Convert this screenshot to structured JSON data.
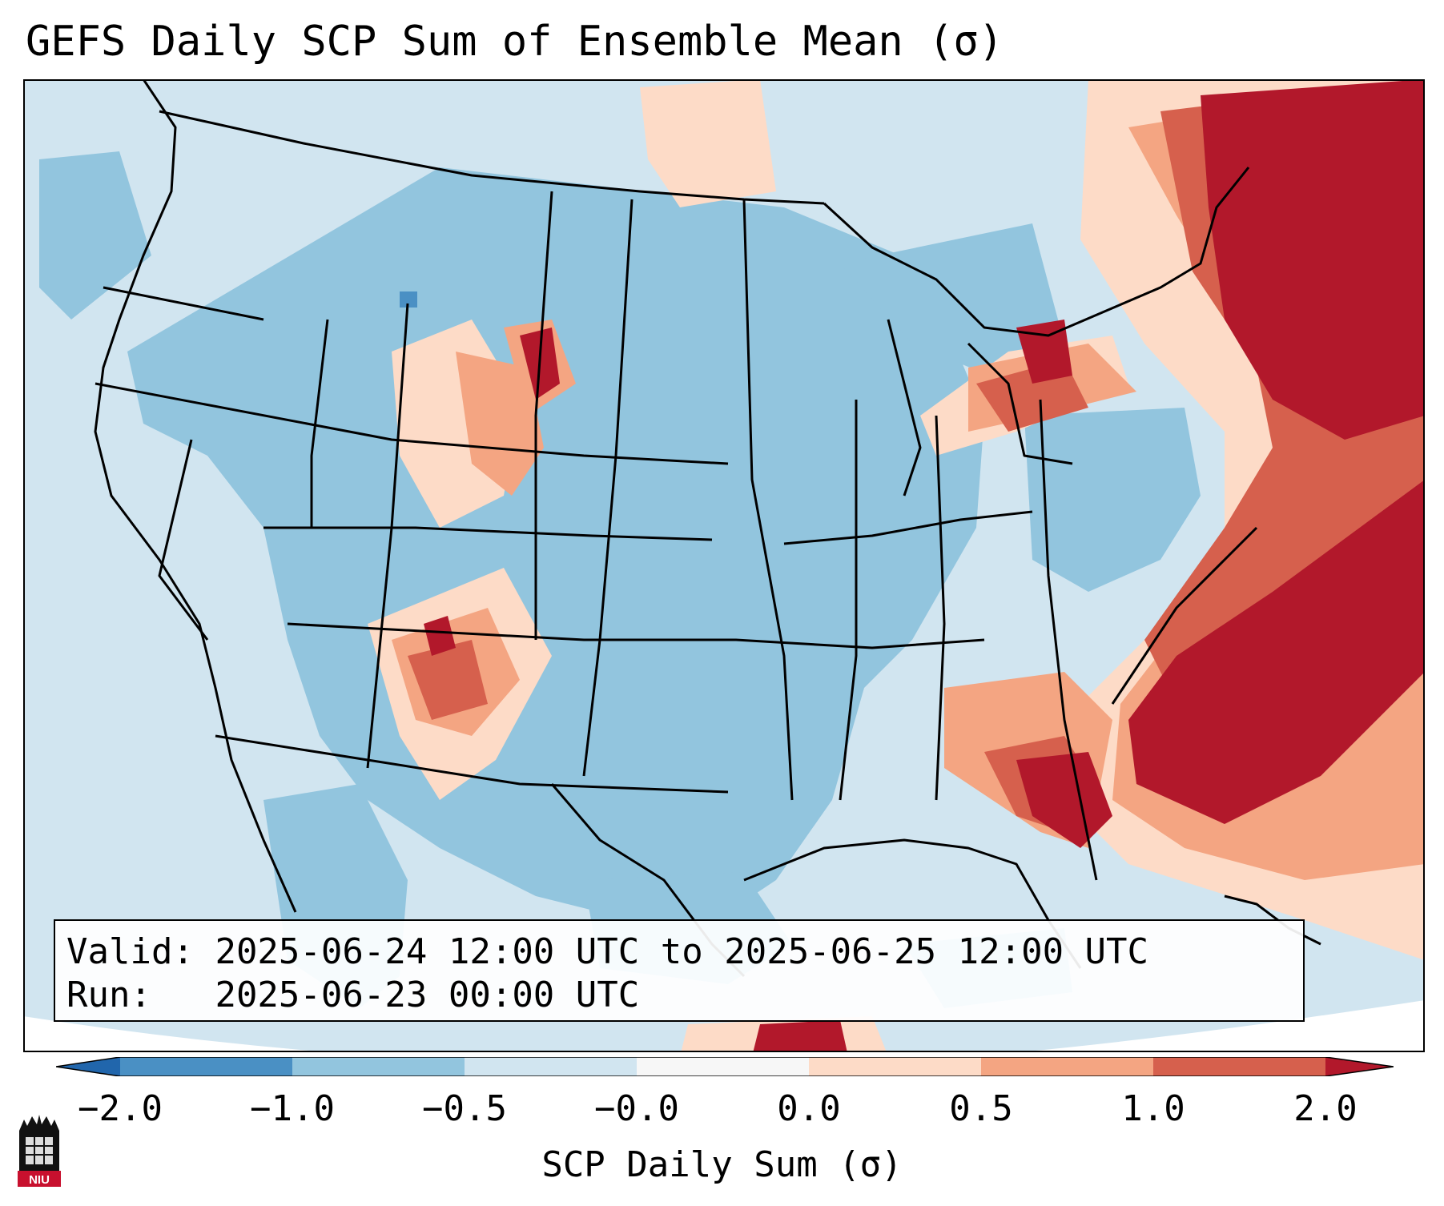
{
  "title": "GEFS Daily SCP Sum of Ensemble Mean (σ)",
  "info": {
    "valid_label": "Valid:",
    "valid_value": "2025-06-24 12:00 UTC to 2025-06-25 12:00 UTC",
    "run_label": "Run:",
    "run_value": "2025-06-23 00:00 UTC"
  },
  "colorbar": {
    "label": "SCP Daily Sum (σ)",
    "ticks": [
      "−2.0",
      "−1.0",
      "−0.5",
      "−0.0",
      "0.0",
      "0.5",
      "1.0",
      "2.0"
    ],
    "bin_colors": [
      "#4a90c4",
      "#92c5de",
      "#d1e5f0",
      "#f7f7f7",
      "#fddbc7",
      "#f4a582",
      "#d6604d",
      "#b2182b"
    ],
    "extend_under_color": "#2166ac",
    "extend_over_color": "#b2182b"
  },
  "map": {
    "background_color": "#d1e5f0",
    "outside_color": "#ffffff",
    "borders_color": "#000000"
  },
  "logo": {
    "text": "NIU"
  }
}
